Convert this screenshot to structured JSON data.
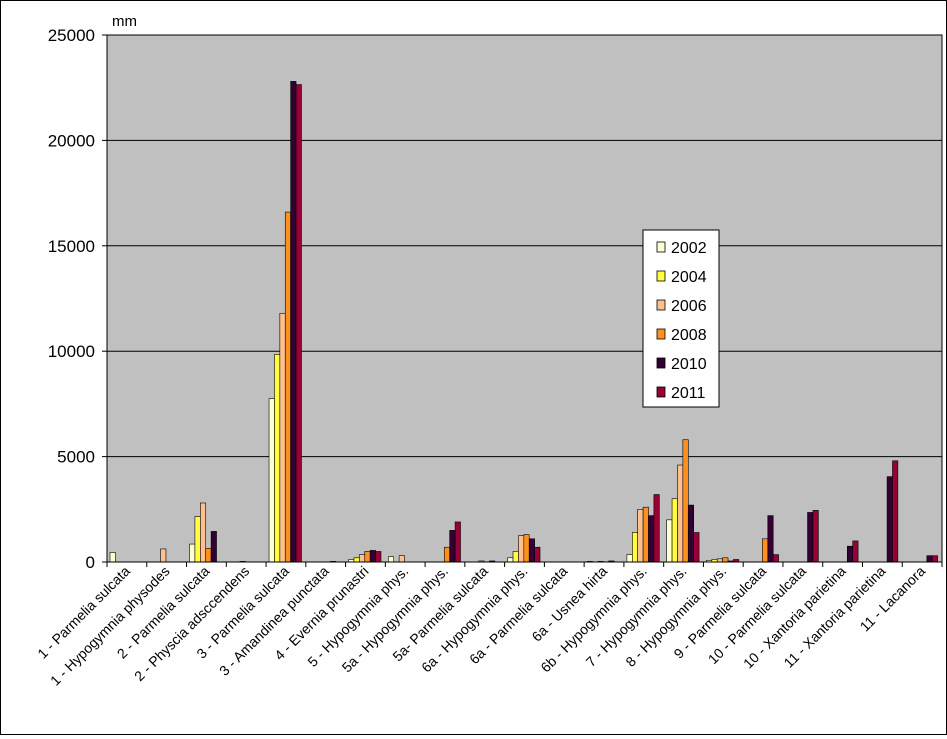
{
  "chart_data": {
    "type": "bar",
    "title": "",
    "xlabel": "",
    "ylabel": "mm",
    "ylim": [
      0,
      25000
    ],
    "yticks": [
      0,
      5000,
      10000,
      15000,
      20000,
      25000
    ],
    "grid": true,
    "plot_background": "#c0c0c0",
    "legend_position": "right",
    "categories": [
      "1 - Parmelia sulcata",
      "1 - Hypogymnia physodes",
      "2 - Parmelia sulcata",
      "2 - Physcia adsccendens",
      "3 - Parmelia sulcata",
      "3 - Amandinea punctata",
      "4 - Evernia prunastri",
      "5 - Hypogymnia phys.",
      "5a - Hypogymnia phys.",
      "5a- Parmelia sulcata",
      "6a - Hypogymnia phys.",
      "6a - Parmelia sulcata",
      "6a - Usnea hirta",
      "6b - Hypogymnia phys.",
      "7 - Hypogymnia phys.",
      "8 - Hypogymnia phys.",
      "9 - Parmelia sulcata",
      "10 - Parmelia sulcata",
      "10 - Xantoria parietina",
      "11 - Xantoria parietina",
      "11 - Lacanora"
    ],
    "series": [
      {
        "name": "2002",
        "color": "#ffffd0",
        "values": [
          450,
          0,
          850,
          0,
          7750,
          0,
          120,
          250,
          0,
          0,
          200,
          0,
          30,
          350,
          2000,
          80,
          0,
          0,
          0,
          0,
          0
        ]
      },
      {
        "name": "2004",
        "color": "#ffff40",
        "values": [
          0,
          0,
          2150,
          0,
          9850,
          0,
          200,
          0,
          0,
          0,
          500,
          0,
          0,
          1400,
          3000,
          120,
          0,
          0,
          0,
          0,
          0
        ]
      },
      {
        "name": "2006",
        "color": "#ffc090",
        "values": [
          0,
          620,
          2800,
          30,
          11800,
          0,
          350,
          300,
          0,
          50,
          1250,
          0,
          30,
          2500,
          4600,
          150,
          0,
          0,
          0,
          0,
          0
        ]
      },
      {
        "name": "2008",
        "color": "#ff9020",
        "values": [
          0,
          0,
          650,
          0,
          16600,
          0,
          500,
          0,
          700,
          0,
          1300,
          0,
          0,
          2600,
          5800,
          200,
          1100,
          0,
          0,
          0,
          0
        ]
      },
      {
        "name": "2010",
        "color": "#330033",
        "values": [
          0,
          0,
          1450,
          0,
          22800,
          30,
          550,
          0,
          1500,
          50,
          1100,
          0,
          50,
          2200,
          2700,
          50,
          2200,
          2350,
          750,
          4050,
          300
        ]
      },
      {
        "name": "2011",
        "color": "#990033",
        "values": [
          0,
          0,
          0,
          0,
          22650,
          0,
          500,
          0,
          1900,
          0,
          700,
          0,
          0,
          3200,
          1400,
          120,
          350,
          2450,
          1000,
          4800,
          300
        ]
      }
    ]
  }
}
